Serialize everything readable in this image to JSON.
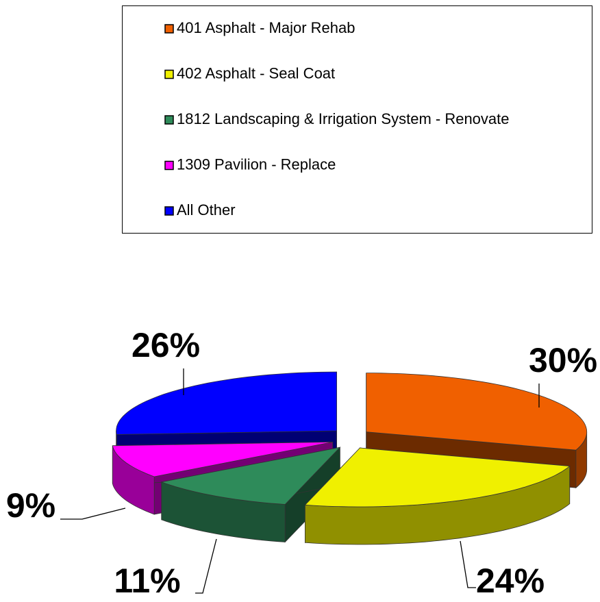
{
  "chart_data": {
    "type": "pie",
    "categories": [
      "401 Asphalt - Major Rehab",
      "402 Asphalt - Seal Coat",
      "1812 Landscaping & Irrigation System - Renovate",
      "1309 Pavilion - Replace",
      "All Other"
    ],
    "values": [
      30,
      24,
      11,
      9,
      26
    ],
    "value_labels": [
      "30%",
      "24%",
      "11%",
      "9%",
      "26%"
    ],
    "colors": [
      "#f06000",
      "#f0f000",
      "#2e8b5a",
      "#ff00ff",
      "#0000ff"
    ],
    "legend": "top"
  }
}
